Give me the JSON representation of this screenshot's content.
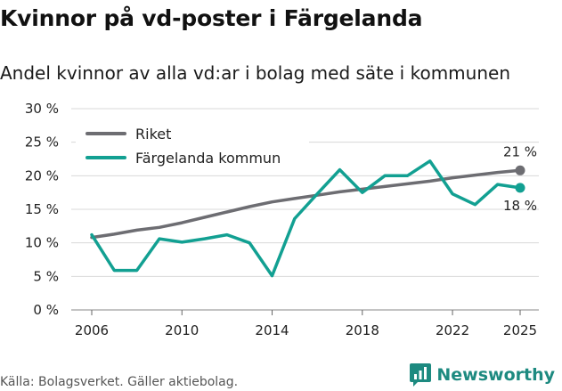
{
  "title": "Kvinnor på vd-poster i Färgelanda",
  "subtitle": "Andel kvinnor av alla vd:ar i bolag med säte i kommunen",
  "source": "Källa: Bolagsverket. Gäller aktiebolag.",
  "brand": "Newsworthy",
  "colors": {
    "riket": "#6d6d72",
    "kommun": "#12a092",
    "grid": "#d8d8d8",
    "brand": "#1d8a80"
  },
  "chart_data": {
    "type": "line",
    "title": "Kvinnor på vd-poster i Färgelanda",
    "subtitle": "Andel kvinnor av alla vd:ar i bolag med säte i kommunen",
    "xlim": [
      2006,
      2025
    ],
    "ylim": [
      0,
      30
    ],
    "xticks": [
      2006,
      2010,
      2014,
      2018,
      2022,
      2025
    ],
    "x_tick_labels": [
      "2006",
      "2010",
      "2014",
      "2018",
      "2022",
      "2025"
    ],
    "yticks": [
      0,
      5,
      10,
      15,
      20,
      25,
      30
    ],
    "y_tick_labels": [
      "0 %",
      "5 %",
      "10 %",
      "15 %",
      "20 %",
      "25 %",
      "30 %"
    ],
    "grid": "horizontal",
    "legend_position": "top-left",
    "x": [
      2006,
      2007,
      2008,
      2009,
      2010,
      2011,
      2012,
      2013,
      2014,
      2015,
      2016,
      2017,
      2018,
      2019,
      2020,
      2021,
      2022,
      2023,
      2024,
      2025
    ],
    "series": [
      {
        "name": "Riket",
        "color_key": "riket",
        "values": [
          10.8,
          11.3,
          11.9,
          12.3,
          13.0,
          13.8,
          14.6,
          15.4,
          16.1,
          16.6,
          17.1,
          17.6,
          18.0,
          18.4,
          18.8,
          19.2,
          19.7,
          20.1,
          20.5,
          20.8
        ],
        "end_label": "21 %"
      },
      {
        "name": "Färgelanda kommun",
        "color_key": "kommun",
        "values": [
          11.2,
          5.9,
          5.9,
          10.6,
          10.1,
          10.6,
          11.2,
          10.0,
          5.1,
          13.6,
          17.3,
          20.9,
          17.5,
          20.0,
          20.0,
          22.2,
          17.3,
          15.7,
          18.7,
          18.2
        ],
        "end_label": "18 %"
      }
    ]
  }
}
